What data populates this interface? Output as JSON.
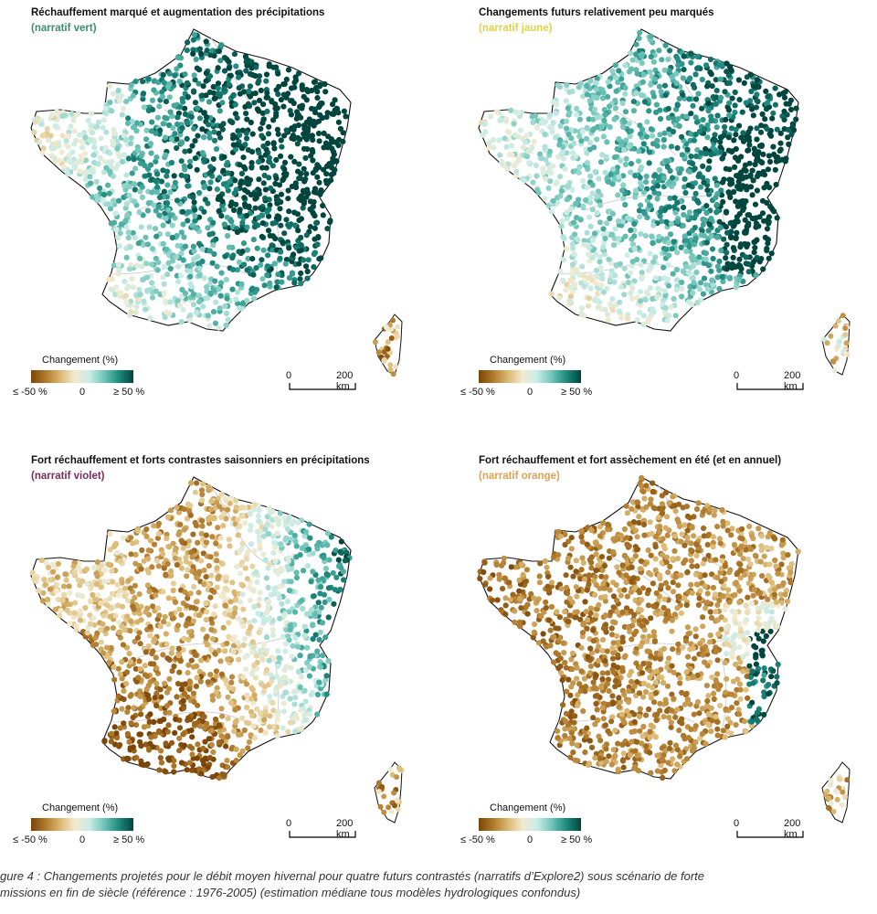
{
  "panels": [
    {
      "title": "Réchauffement marqué et augmentation des précipitations",
      "subtitle": "(narratif vert)",
      "subtitle_color": "#3a8f6a",
      "pattern": "green"
    },
    {
      "title": "Changements futurs relativement peu marqués",
      "subtitle": "(narratif jaune)",
      "subtitle_color": "#e2d24a",
      "pattern": "yellow"
    },
    {
      "title": "Fort réchauffement et forts contrastes saisonniers en précipitations",
      "subtitle": "(narratif violet)",
      "subtitle_color": "#7a2b5e",
      "pattern": "violet"
    },
    {
      "title": "Fort réchauffement et fort assèchement en été (et en annuel)",
      "subtitle": "(narratif orange)",
      "subtitle_color": "#e0a050",
      "pattern": "orange"
    }
  ],
  "legend": {
    "title": "Changement (%)",
    "min_label": "≤ -50 %",
    "mid_label": "0",
    "max_label": "≥ 50 %",
    "colors": [
      "#7a4506",
      "#b07a2c",
      "#dbb871",
      "#f3ead0",
      "#c9ece6",
      "#6fc4b8",
      "#1f8a80",
      "#00463e"
    ]
  },
  "scale": {
    "start_label": "0",
    "end_label": "200 km"
  },
  "caption": {
    "line1": "gure 4 : Changements projetés pour le débit moyen hivernal pour quatre futurs contrastés (narratifs d’Explore2) sous scénario de forte",
    "line2": "missions en fin de siècle (référence : 1976-2005) (estimation médiane tous modèles hydrologiques confondus)"
  }
}
